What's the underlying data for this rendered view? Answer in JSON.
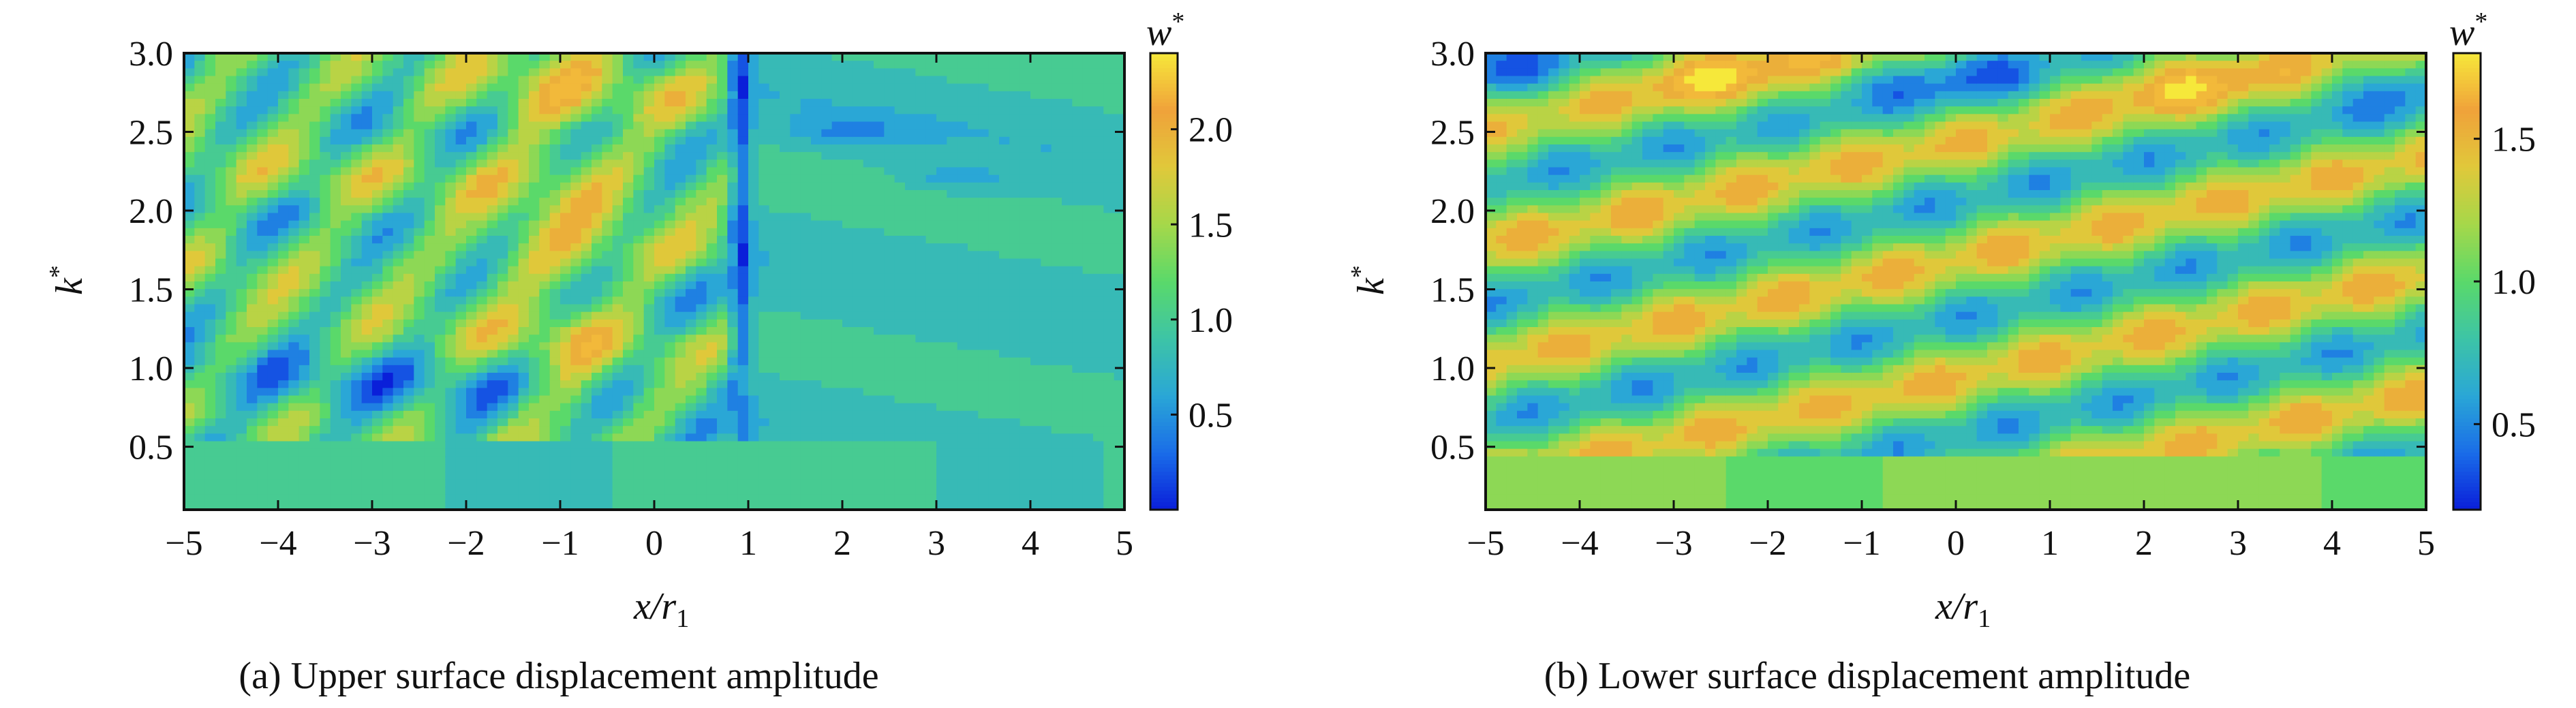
{
  "chart_data": [
    {
      "type": "heatmap",
      "caption": "(a) Upper surface displacement amplitude",
      "xlabel_main": "x/r",
      "xlabel_sub": "1",
      "ylabel": "k",
      "ylabel_sup": "*",
      "colorbar_label": "w",
      "colorbar_sup": "*",
      "xlim": [
        -5,
        5
      ],
      "ylim": [
        0.1,
        3.0
      ],
      "x_ticks": [
        "−5",
        "−4",
        "−3",
        "−2",
        "−1",
        "0",
        "1",
        "2",
        "3",
        "4",
        "5"
      ],
      "x_tick_values": [
        -5,
        -4,
        -3,
        -2,
        -1,
        0,
        1,
        2,
        3,
        4,
        5
      ],
      "y_ticks": [
        "0.5",
        "1.0",
        "1.5",
        "2.0",
        "2.5",
        "3.0"
      ],
      "y_tick_values": [
        0.5,
        1.0,
        1.5,
        2.0,
        2.5,
        3.0
      ],
      "colorbar_range": [
        0.0,
        2.4
      ],
      "colorbar_ticks": [
        "0.5",
        "1.0",
        "1.5",
        "2.0"
      ],
      "colorbar_tick_values": [
        0.5,
        1.0,
        1.5,
        2.0
      ],
      "colormap": [
        "#0a1fd9",
        "#1a6de8",
        "#2aa7d6",
        "#3dc4a6",
        "#5ad96a",
        "#a6d84a",
        "#e0c83a",
        "#f0a23a",
        "#f6e83a"
      ],
      "description_of_field": "Oblique banded ridges on x<0 sloping upward-right with peaks ~2.3 near x≈-1; a deep vertical minimum band at x≈1; smoother field for x>1 with localized minima near k≈2.5, 2.2",
      "z_min": 0.05,
      "z_max": 2.4
    },
    {
      "type": "heatmap",
      "caption": "(b) Lower surface displacement amplitude",
      "xlabel_main": "x/r",
      "xlabel_sub": "1",
      "ylabel": "k",
      "ylabel_sup": "*",
      "colorbar_label": "w",
      "colorbar_sup": "*",
      "xlim": [
        -5,
        5
      ],
      "ylim": [
        0.1,
        3.0
      ],
      "x_ticks": [
        "−5",
        "−4",
        "−3",
        "−2",
        "−1",
        "0",
        "1",
        "2",
        "3",
        "4",
        "5"
      ],
      "x_tick_values": [
        -5,
        -4,
        -3,
        -2,
        -1,
        0,
        1,
        2,
        3,
        4,
        5
      ],
      "y_ticks": [
        "0.5",
        "1.0",
        "1.5",
        "2.0",
        "2.5",
        "3.0"
      ],
      "y_tick_values": [
        0.5,
        1.0,
        1.5,
        2.0,
        2.5,
        3.0
      ],
      "colorbar_range": [
        0.2,
        1.8
      ],
      "colorbar_ticks": [
        "0.5",
        "1.0",
        "1.5"
      ],
      "colorbar_tick_values": [
        0.5,
        1.0,
        1.5
      ],
      "colormap": [
        "#0a1fd9",
        "#1a6de8",
        "#2aa7d6",
        "#3dc4a6",
        "#5ad96a",
        "#a6d84a",
        "#e0c83a",
        "#f0a23a",
        "#f6e83a"
      ],
      "description_of_field": "Diagonal stripes rising left-to-right across whole domain; blue minima and orange maxima alternate; low k region mostly green ~1.1",
      "z_min": 0.2,
      "z_max": 1.8
    }
  ]
}
